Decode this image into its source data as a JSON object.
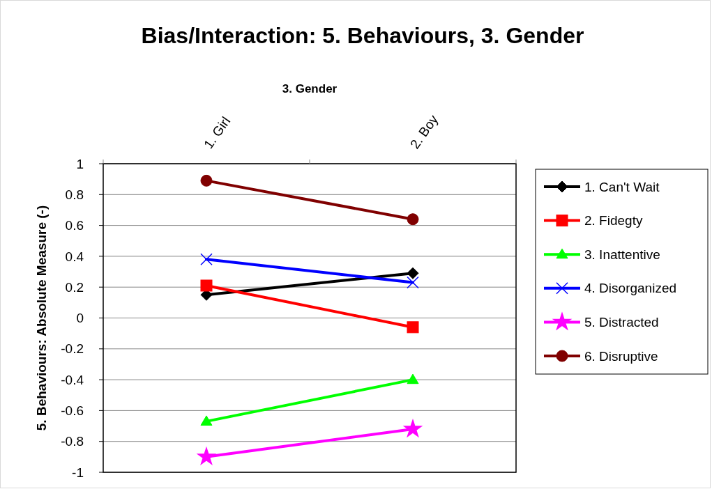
{
  "chart_data": {
    "type": "line",
    "title": "Bias/Interaction: 5. Behaviours, 3. Gender",
    "xlabel": "3. Gender",
    "ylabel": "5. Behaviours: Absolute Measure (-)",
    "categories": [
      "1. Girl",
      "2. Boy"
    ],
    "ylim": [
      -1,
      1
    ],
    "yticks": [
      -1,
      -0.8,
      -0.6,
      -0.4,
      -0.2,
      0,
      0.2,
      0.4,
      0.6,
      0.8,
      1
    ],
    "grid": "y",
    "legend": "right",
    "series": [
      {
        "name": "1. Can't Wait",
        "color": "#000000",
        "marker": "diamond",
        "values": [
          0.15,
          0.29
        ]
      },
      {
        "name": "2. Fidegty",
        "color": "#ff0000",
        "marker": "square",
        "values": [
          0.21,
          -0.06
        ]
      },
      {
        "name": "3. Inattentive",
        "color": "#00ff00",
        "marker": "triangle",
        "values": [
          -0.67,
          -0.4
        ]
      },
      {
        "name": "4. Disorganized",
        "color": "#0000ff",
        "marker": "cross",
        "values": [
          0.38,
          0.23
        ]
      },
      {
        "name": "5. Distracted",
        "color": "#ff00ff",
        "marker": "star",
        "values": [
          -0.9,
          -0.72
        ]
      },
      {
        "name": "6. Disruptive",
        "color": "#800000",
        "marker": "circle",
        "values": [
          0.89,
          0.64
        ]
      }
    ]
  }
}
